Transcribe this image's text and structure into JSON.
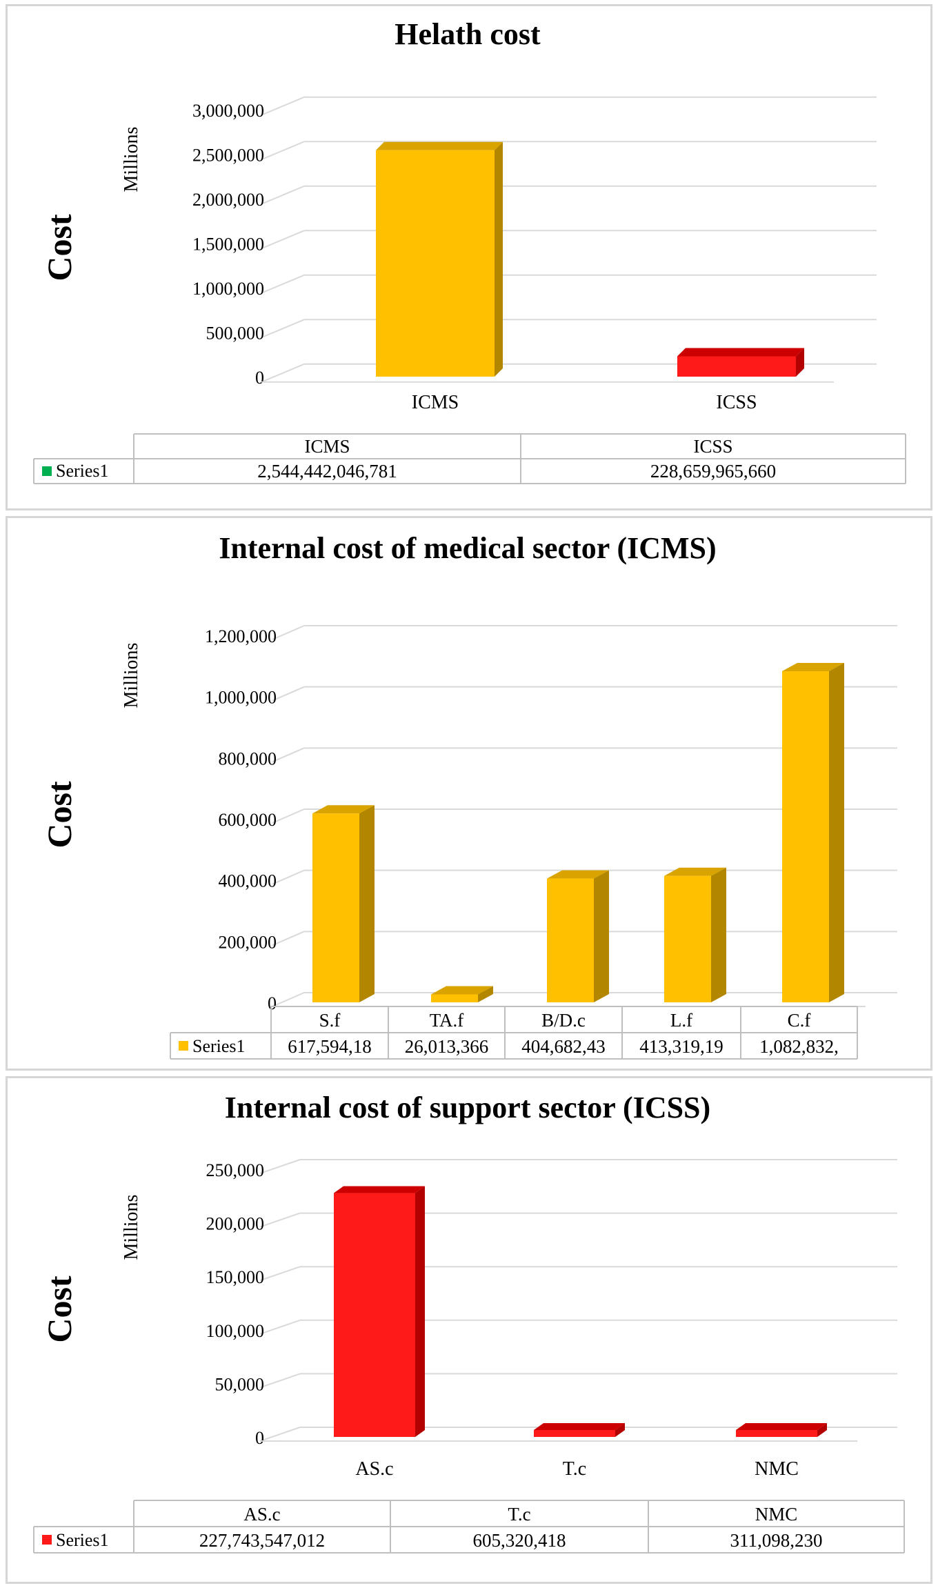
{
  "colors": {
    "gold": "#ffc000",
    "gold_side": "#b38600",
    "gold_top": "#d9a300",
    "red": "#ff1a1a",
    "red_side": "#b30000",
    "red_top": "#cc0000",
    "legend_green": "#00b050",
    "grid": "#d9d9d9",
    "frame": "#bfbfbf"
  },
  "chart_data": [
    {
      "type": "bar",
      "title": "Helath cost",
      "ylabel": "Cost",
      "units_label": "Millions",
      "yticks": [
        "0",
        "500,000",
        "1,000,000",
        "1,500,000",
        "2,000,000",
        "2,500,000",
        "3,000,000"
      ],
      "ylim": [
        0,
        3000000
      ],
      "categories": [
        "ICMS",
        "ICSS"
      ],
      "values": [
        2544442.046781,
        228659.96566
      ],
      "bar_colors": [
        "gold",
        "red"
      ],
      "series": [
        {
          "name": "Series1",
          "legend_color": "legend_green",
          "labels": [
            "2,544,442,046,781",
            "228,659,965,660"
          ]
        }
      ]
    },
    {
      "type": "bar",
      "title": "Internal cost of medical sector (ICMS)",
      "ylabel": "Cost",
      "units_label": "Millions",
      "yticks": [
        "0",
        "200,000",
        "400,000",
        "600,000",
        "800,000",
        "1,000,000",
        "1,200,000"
      ],
      "ylim": [
        0,
        1200000
      ],
      "categories": [
        "S.f",
        "TA.f",
        "B/D.c",
        "L.f",
        "C.f"
      ],
      "values": [
        617594.18,
        26013.366,
        404682.43,
        413319.19,
        1082832
      ],
      "bar_colors": [
        "gold",
        "gold",
        "gold",
        "gold",
        "gold"
      ],
      "series": [
        {
          "name": "Series1",
          "legend_color": "gold",
          "labels": [
            "617,594,18",
            "26,013,366",
            "404,682,43",
            "413,319,19",
            "1,082,832,"
          ]
        }
      ]
    },
    {
      "type": "bar",
      "title": "Internal cost of support sector (ICSS)",
      "ylabel": "Cost",
      "units_label": "Millions",
      "yticks": [
        "0",
        "50,000",
        "100,000",
        "150,000",
        "200,000",
        "250,000"
      ],
      "ylim": [
        0,
        250000
      ],
      "categories": [
        "AS.c",
        "T.c",
        "NMC"
      ],
      "values": [
        227743.547012,
        605.320418,
        311.09823
      ],
      "bar_colors": [
        "red",
        "red",
        "red"
      ],
      "series": [
        {
          "name": "Series1",
          "legend_color": "red",
          "labels": [
            "227,743,547,012",
            "605,320,418",
            "311,098,230"
          ]
        }
      ]
    }
  ]
}
